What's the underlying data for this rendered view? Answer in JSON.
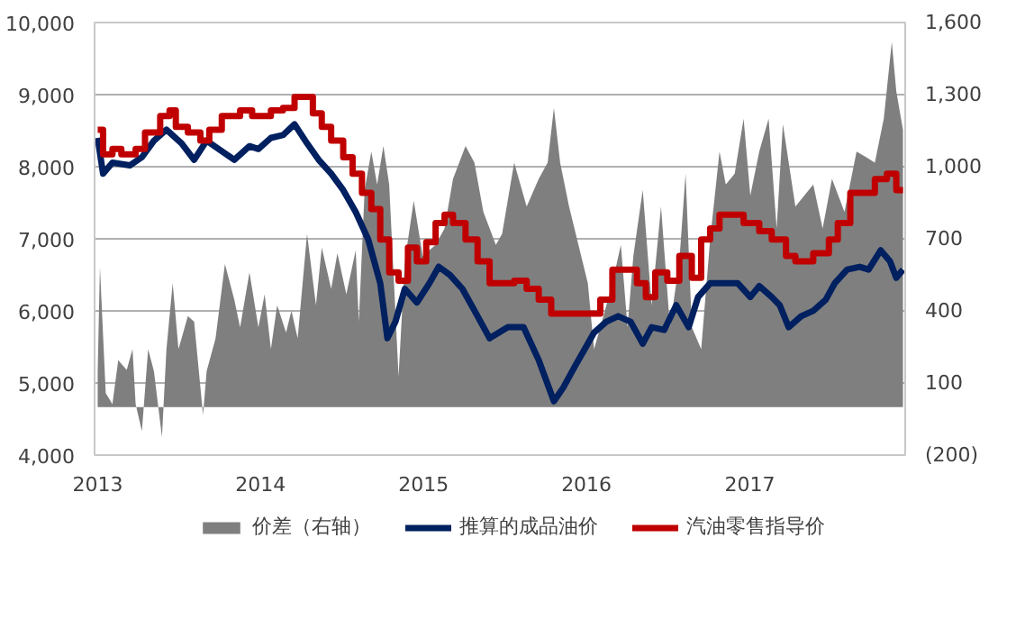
{
  "chart_data": {
    "type": "line",
    "xlim": [
      "2012-12-25",
      "2017-12-15"
    ],
    "xticks": [
      {
        "value": "2013-01-01",
        "label": "2013"
      },
      {
        "value": "2014-01-01",
        "label": "2014"
      },
      {
        "value": "2015-01-01",
        "label": "2015"
      },
      {
        "value": "2016-01-01",
        "label": "2016"
      },
      {
        "value": "2017-01-01",
        "label": "2017"
      }
    ],
    "ylim": [
      4000,
      10000
    ],
    "yticks": [
      {
        "value": 4000,
        "label": "4,000"
      },
      {
        "value": 5000,
        "label": "5,000"
      },
      {
        "value": 6000,
        "label": "6,000"
      },
      {
        "value": 7000,
        "label": "7,000"
      },
      {
        "value": 8000,
        "label": "8,000"
      },
      {
        "value": 9000,
        "label": "9,000"
      },
      {
        "value": 10000,
        "label": "10,000"
      }
    ],
    "y2lim": [
      -200,
      1600
    ],
    "y2ticks": [
      {
        "value": -200,
        "label": "(200)"
      },
      100,
      400,
      700,
      {
        "value": 1000,
        "label": "1,000"
      },
      {
        "value": 1300,
        "label": "1,300"
      },
      {
        "value": 1600,
        "label": "1,600"
      }
    ],
    "grid": "y",
    "legend": "bottom",
    "series": [
      {
        "name": "价差（右轴）",
        "type": "area",
        "axis": "y2",
        "color": "#7f7f7f",
        "x": [
          "2013-01-01",
          "2013-01-06",
          "2013-01-19",
          "2013-02-03",
          "2013-02-16",
          "2013-03-07",
          "2013-03-20",
          "2013-03-27",
          "2013-04-10",
          "2013-04-24",
          "2013-05-07",
          "2013-05-25",
          "2013-06-04",
          "2013-06-18",
          "2013-07-01",
          "2013-07-22",
          "2013-08-05",
          "2013-08-25",
          "2013-09-02",
          "2013-09-22",
          "2013-10-13",
          "2013-11-03",
          "2013-11-16",
          "2013-12-07",
          "2013-12-27",
          "2014-01-10",
          "2014-01-24",
          "2014-02-07",
          "2014-02-27",
          "2014-03-11",
          "2014-03-25",
          "2014-04-15",
          "2014-05-05",
          "2014-05-18",
          "2014-06-08",
          "2014-06-22",
          "2014-07-12",
          "2014-08-02",
          "2014-08-09",
          "2014-08-22",
          "2014-09-06",
          "2014-09-19",
          "2014-10-03",
          "2014-10-16",
          "2014-11-06",
          "2014-11-20",
          "2014-12-10",
          "2014-12-30",
          "2015-01-28",
          "2015-02-17",
          "2015-03-08",
          "2015-04-05",
          "2015-04-25",
          "2015-05-15",
          "2015-06-12",
          "2015-06-26",
          "2015-07-23",
          "2015-08-20",
          "2015-09-16",
          "2015-10-06",
          "2015-10-20",
          "2015-11-03",
          "2015-11-23",
          "2015-12-14",
          "2016-01-04",
          "2016-01-18",
          "2016-02-08",
          "2016-02-28",
          "2016-03-18",
          "2016-04-02",
          "2016-04-15",
          "2016-05-06",
          "2016-05-26",
          "2016-06-16",
          "2016-07-06",
          "2016-07-27",
          "2016-08-10",
          "2016-08-24",
          "2016-09-14",
          "2016-10-04",
          "2016-10-25",
          "2016-11-08",
          "2016-11-28",
          "2016-12-18",
          "2017-01-02",
          "2017-01-22",
          "2017-02-12",
          "2017-03-02",
          "2017-03-16",
          "2017-04-13",
          "2017-05-03",
          "2017-05-23",
          "2017-06-13",
          "2017-07-04",
          "2017-08-01",
          "2017-08-28",
          "2017-09-18",
          "2017-10-08",
          "2017-10-28",
          "2017-11-15",
          "2017-11-25",
          "2017-12-10"
        ],
        "values": [
          149,
          584,
          58,
          12,
          195,
          154,
          241,
          12,
          -101,
          241,
          149,
          -125,
          241,
          515,
          241,
          378,
          355,
          -33,
          149,
          286,
          595,
          447,
          332,
          560,
          332,
          469,
          241,
          423,
          310,
          401,
          286,
          721,
          423,
          663,
          492,
          640,
          469,
          652,
          355,
          903,
          1063,
          926,
          1086,
          926,
          127,
          606,
          858,
          629,
          675,
          743,
          949,
          1086,
          1017,
          812,
          675,
          721,
          1017,
          834,
          949,
          1017,
          1245,
          1017,
          834,
          675,
          515,
          241,
          378,
          515,
          675,
          332,
          629,
          903,
          423,
          834,
          332,
          606,
          971,
          332,
          241,
          697,
          1063,
          926,
          971,
          1200,
          880,
          1063,
          1200,
          743,
          1177,
          834,
          880,
          926,
          743,
          949,
          812,
          1063,
          1040,
          1017,
          1200,
          1519,
          1314,
          1154
        ]
      },
      {
        "name": "推算的成品油价",
        "color": "#002060",
        "x": [
          "2013-01-01",
          "2013-01-13",
          "2013-02-03",
          "2013-03-14",
          "2013-04-10",
          "2013-05-07",
          "2013-06-04",
          "2013-07-08",
          "2013-08-05",
          "2013-09-02",
          "2013-09-29",
          "2013-11-03",
          "2013-12-07",
          "2013-12-27",
          "2014-01-24",
          "2014-02-20",
          "2014-03-18",
          "2014-04-15",
          "2014-05-11",
          "2014-06-08",
          "2014-07-05",
          "2014-08-02",
          "2014-08-30",
          "2014-09-26",
          "2014-10-12",
          "2014-10-30",
          "2014-11-20",
          "2014-12-17",
          "2015-01-14",
          "2015-02-04",
          "2015-03-01",
          "2015-03-29",
          "2015-05-02",
          "2015-05-29",
          "2015-07-09",
          "2015-08-13",
          "2015-09-16",
          "2015-10-20",
          "2015-11-10",
          "2015-12-07",
          "2015-12-28",
          "2016-01-18",
          "2016-02-14",
          "2016-03-12",
          "2016-04-09",
          "2016-05-06",
          "2016-05-26",
          "2016-06-23",
          "2016-07-20",
          "2016-08-17",
          "2016-09-07",
          "2016-10-04",
          "2016-11-08",
          "2016-12-05",
          "2017-01-02",
          "2017-01-22",
          "2017-02-19",
          "2017-03-09",
          "2017-03-29",
          "2017-04-26",
          "2017-05-23",
          "2017-06-20",
          "2017-07-10",
          "2017-08-07",
          "2017-09-04",
          "2017-09-24",
          "2017-10-21",
          "2017-11-11",
          "2017-11-25",
          "2017-12-10"
        ],
        "values": [
          8400,
          7904,
          8057,
          8018,
          8132,
          8361,
          8513,
          8324,
          8096,
          8361,
          8246,
          8096,
          8285,
          8246,
          8400,
          8438,
          8589,
          8324,
          8096,
          7904,
          7676,
          7372,
          6991,
          6383,
          5621,
          5849,
          6306,
          6116,
          6383,
          6612,
          6498,
          6306,
          5927,
          5621,
          5774,
          5774,
          5317,
          4746,
          4936,
          5242,
          5470,
          5699,
          5849,
          5927,
          5849,
          5546,
          5774,
          5735,
          6078,
          5774,
          6192,
          6383,
          6383,
          6383,
          6192,
          6345,
          6192,
          6078,
          5774,
          5927,
          6002,
          6155,
          6383,
          6573,
          6612,
          6573,
          6840,
          6687,
          6459,
          6573
        ]
      },
      {
        "name": "汽油零售指导价",
        "type": "step",
        "color": "#c00000",
        "x": [
          "2013-01-01",
          "2013-01-13",
          "2013-02-03",
          "2013-02-23",
          "2013-03-27",
          "2013-04-17",
          "2013-05-21",
          "2013-06-11",
          "2013-06-25",
          "2013-07-22",
          "2013-08-19",
          "2013-09-08",
          "2013-10-06",
          "2013-11-16",
          "2013-12-13",
          "2014-01-24",
          "2014-02-20",
          "2014-03-18",
          "2014-04-28",
          "2014-05-18",
          "2014-06-08",
          "2014-07-05",
          "2014-07-26",
          "2014-08-16",
          "2014-09-06",
          "2014-09-26",
          "2014-10-16",
          "2014-11-06",
          "2014-11-27",
          "2014-12-17",
          "2015-01-07",
          "2015-01-28",
          "2015-02-17",
          "2015-03-08",
          "2015-04-05",
          "2015-05-02",
          "2015-05-29",
          "2015-07-23",
          "2015-08-20",
          "2015-09-16",
          "2015-10-14",
          "2016-02-01",
          "2016-02-28",
          "2016-04-23",
          "2016-05-13",
          "2016-06-03",
          "2016-06-30",
          "2016-07-27",
          "2016-08-24",
          "2016-09-14",
          "2016-10-04",
          "2016-10-25",
          "2016-12-18",
          "2017-01-22",
          "2017-02-19",
          "2017-03-23",
          "2017-04-13",
          "2017-05-23",
          "2017-06-27",
          "2017-07-17",
          "2017-08-14",
          "2017-10-08",
          "2017-11-04",
          "2017-11-25",
          "2017-12-10"
        ],
        "values": [
          8513,
          8171,
          8246,
          8171,
          8246,
          8475,
          8703,
          8780,
          8552,
          8475,
          8361,
          8513,
          8703,
          8780,
          8703,
          8780,
          8817,
          8970,
          8742,
          8552,
          8361,
          8132,
          7904,
          7639,
          7411,
          6991,
          6534,
          6420,
          6877,
          6687,
          6954,
          7219,
          7333,
          7219,
          6991,
          6687,
          6383,
          6420,
          6306,
          6155,
          5963,
          6155,
          6573,
          6383,
          6192,
          6534,
          6420,
          6763,
          6459,
          6991,
          7144,
          7333,
          7219,
          7105,
          6991,
          6763,
          6687,
          6801,
          6991,
          7219,
          7639,
          7829,
          7904,
          7676,
          7676
        ]
      }
    ]
  }
}
